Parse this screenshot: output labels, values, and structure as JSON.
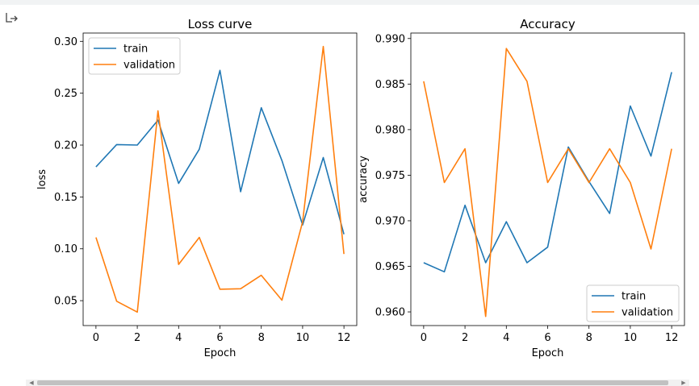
{
  "colors": {
    "train": "#1f77b4",
    "validation": "#ff7f0e"
  },
  "icons": {
    "output": "output-arrow-icon"
  },
  "chart_data": [
    {
      "type": "line",
      "title": "Loss curve",
      "xlabel": "Epoch",
      "ylabel": "loss",
      "x": [
        0,
        1,
        2,
        3,
        4,
        5,
        6,
        7,
        8,
        9,
        10,
        11,
        12
      ],
      "xlim": [
        -0.62,
        12.62
      ],
      "ylim": [
        0.026,
        0.308
      ],
      "xticks": [
        0,
        2,
        4,
        6,
        8,
        10,
        12
      ],
      "yticks": [
        "0.05",
        "0.10",
        "0.15",
        "0.20",
        "0.25",
        "0.30"
      ],
      "legend_position": "upper-left",
      "series": [
        {
          "name": "train",
          "values": [
            0.179,
            0.2005,
            0.2,
            0.224,
            0.163,
            0.196,
            0.272,
            0.155,
            0.236,
            0.185,
            0.123,
            0.188,
            0.114
          ]
        },
        {
          "name": "validation",
          "values": [
            0.111,
            0.0495,
            0.039,
            0.233,
            0.085,
            0.111,
            0.061,
            0.0615,
            0.0745,
            0.0505,
            0.126,
            0.295,
            0.095
          ]
        }
      ]
    },
    {
      "type": "line",
      "title": "Accuracy",
      "xlabel": "Epoch",
      "ylabel": "accuracy",
      "x": [
        0,
        1,
        2,
        3,
        4,
        5,
        6,
        7,
        8,
        9,
        10,
        11,
        12
      ],
      "xlim": [
        -0.62,
        12.62
      ],
      "ylim": [
        0.9585,
        0.9906
      ],
      "xticks": [
        0,
        2,
        4,
        6,
        8,
        10,
        12
      ],
      "yticks": [
        "0.960",
        "0.965",
        "0.970",
        "0.975",
        "0.980",
        "0.985",
        "0.990"
      ],
      "legend_position": "lower-right",
      "series": [
        {
          "name": "train",
          "values": [
            0.9654,
            0.9644,
            0.9717,
            0.9654,
            0.9699,
            0.9654,
            0.9671,
            0.9781,
            0.9743,
            0.9708,
            0.9826,
            0.9771,
            0.9863
          ]
        },
        {
          "name": "validation",
          "values": [
            0.9853,
            0.9742,
            0.9779,
            0.9595,
            0.9889,
            0.9853,
            0.9742,
            0.9779,
            0.9742,
            0.9779,
            0.9742,
            0.9669,
            0.9779
          ]
        }
      ]
    }
  ]
}
